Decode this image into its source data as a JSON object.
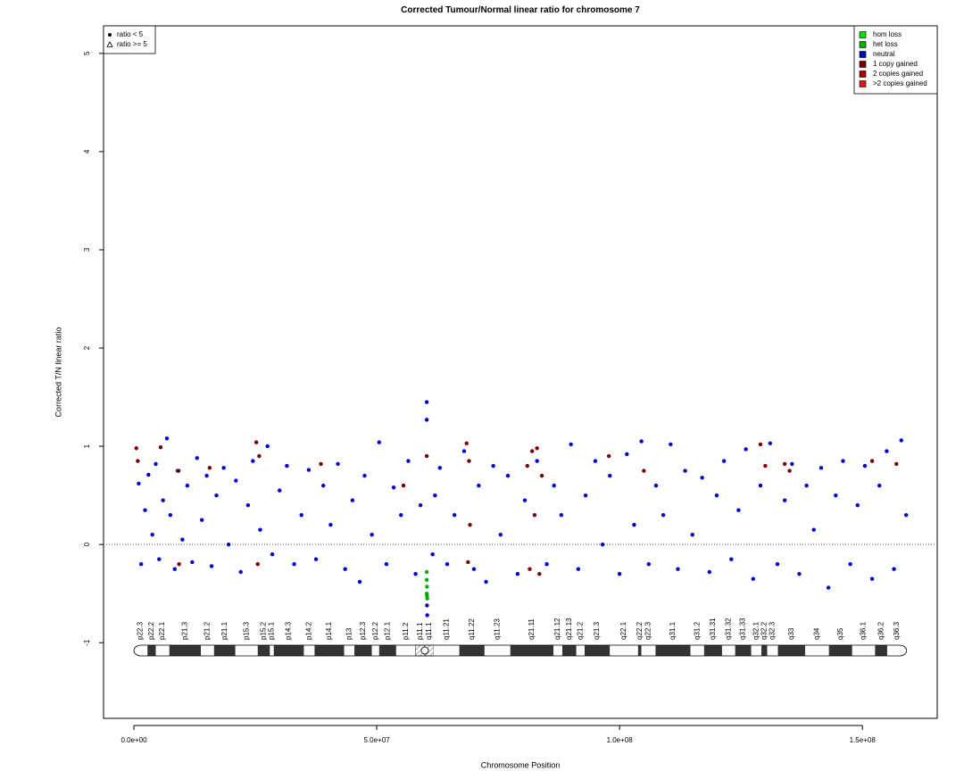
{
  "chart_data": {
    "type": "scatter",
    "title": "Corrected Tumour/Normal linear ratio for chromosome  7",
    "x_label": "Chromosome Position",
    "y_label": "Corrected T/N linear ratio",
    "xlim": [
      -6250000,
      165400000
    ],
    "ylim": [
      -1.77,
      5.28
    ],
    "xticks": [
      {
        "value": 0,
        "label": "0.0e+00"
      },
      {
        "value": 50000000,
        "label": "5.0e+07"
      },
      {
        "value": 100000000,
        "label": "1.0e+08"
      },
      {
        "value": 150000000,
        "label": "1.5e+08"
      }
    ],
    "yticks": [
      -1,
      0,
      1,
      2,
      3,
      4,
      5
    ],
    "reference_line": 0,
    "legend": "top-right",
    "shape_legend": [
      "ratio < 5",
      "ratio >= 5"
    ],
    "series": [
      {
        "name": "hom loss",
        "color": "#00e000",
        "x": [],
        "values": []
      },
      {
        "name": "het loss",
        "color": "#00b000",
        "x": [
          60300000.0,
          60350000.0,
          60300000.0,
          60350000.0,
          60400000.0,
          60300000.0
        ],
        "values": [
          -0.36,
          -0.43,
          -0.5,
          -0.52,
          -0.55,
          -0.28
        ]
      },
      {
        "name": "neutral",
        "color": "#0000c8",
        "x": [
          1000000.0,
          1500000.0,
          2300000.0,
          3000000.0,
          3800000.0,
          4500000.0,
          5200000.0,
          6000000.0,
          6800000.0,
          7500000.0,
          8400000.0,
          9200000.0,
          10000000.0,
          11000000.0,
          12000000.0,
          13000000.0,
          14000000.0,
          15000000.0,
          16000000.0,
          17000000.0,
          18500000.0,
          19500000.0,
          21000000.0,
          22000000.0,
          23500000.0,
          24500000.0,
          26000000.0,
          27500000.0,
          28500000.0,
          30000000.0,
          31500000.0,
          33000000.0,
          34500000.0,
          36000000.0,
          37500000.0,
          39000000.0,
          40500000.0,
          42000000.0,
          43500000.0,
          45000000.0,
          46500000.0,
          47500000.0,
          49000000.0,
          50500000.0,
          52000000.0,
          53500000.0,
          55000000.0,
          56500000.0,
          58000000.0,
          59000000.0,
          60300000.0,
          60300000.0,
          60400000.0,
          60350000.0,
          61500000.0,
          62000000.0,
          63000000.0,
          64500000.0,
          66000000.0,
          68000000.0,
          70000000.0,
          71000000.0,
          72500000.0,
          74000000.0,
          75500000.0,
          77000000.0,
          79000000.0,
          80500000.0,
          83000000.0,
          85000000.0,
          86500000.0,
          88000000.0,
          90000000.0,
          91500000.0,
          93000000.0,
          95000000.0,
          96500000.0,
          98000000.0,
          100000000.0,
          101500000.0,
          103000000.0,
          104500000.0,
          106000000.0,
          107500000.0,
          109000000.0,
          110500000.0,
          112000000.0,
          113500000.0,
          115000000.0,
          117000000.0,
          118500000.0,
          120000000.0,
          121500000.0,
          123000000.0,
          124500000.0,
          126000000.0,
          127500000.0,
          129000000.0,
          131000000.0,
          132500000.0,
          134000000.0,
          135500000.0,
          137000000.0,
          138500000.0,
          140000000.0,
          141500000.0,
          143000000.0,
          144500000.0,
          146000000.0,
          147500000.0,
          149000000.0,
          150500000.0,
          152000000.0,
          153500000.0,
          155000000.0,
          156500000.0,
          158000000.0,
          159000000.0
        ],
        "values": [
          0.62,
          -0.2,
          0.35,
          0.71,
          0.1,
          0.82,
          -0.15,
          0.45,
          1.08,
          0.3,
          -0.25,
          0.75,
          0.05,
          0.6,
          -0.18,
          0.88,
          0.25,
          0.7,
          -0.22,
          0.5,
          0.78,
          0,
          0.65,
          -0.28,
          0.4,
          0.85,
          0.15,
          1.0,
          -0.1,
          0.55,
          0.8,
          -0.2,
          0.3,
          0.76,
          -0.15,
          0.6,
          0.2,
          0.82,
          -0.25,
          0.45,
          -0.38,
          0.7,
          0.1,
          1.04,
          -0.2,
          0.58,
          0.3,
          0.85,
          -0.3,
          0.4,
          1.45,
          1.27,
          -0.72,
          -0.62,
          -0.1,
          0.5,
          0.78,
          -0.2,
          0.3,
          0.95,
          -0.25,
          0.6,
          -0.38,
          0.8,
          0.1,
          0.7,
          -0.3,
          0.45,
          0.85,
          -0.2,
          0.6,
          0.3,
          1.02,
          -0.25,
          0.5,
          0.85,
          0,
          0.7,
          -0.3,
          0.92,
          0.2,
          1.05,
          -0.2,
          0.6,
          0.3,
          1.02,
          -0.25,
          0.75,
          0.1,
          0.68,
          -0.28,
          0.5,
          0.85,
          -0.15,
          0.35,
          0.97,
          -0.35,
          0.6,
          1.03,
          -0.2,
          0.45,
          0.82,
          -0.3,
          0.6,
          0.15,
          0.78,
          -0.44,
          0.5,
          0.85,
          -0.2,
          0.4,
          0.8,
          -0.35,
          0.6,
          0.95,
          -0.25,
          1.06,
          0.3
        ]
      },
      {
        "name": "1 copy gained",
        "color": "#7a0000",
        "x": [
          500000.0,
          800000.0,
          5500000.0,
          9000000.0,
          9300000.0,
          15600000.0,
          25200000.0,
          25800000.0,
          25500000.0,
          38500000.0,
          55500000.0,
          60300000.0,
          68500000.0,
          68800000.0,
          69000000.0,
          69200000.0,
          81000000.0,
          81500000.0,
          82000000.0,
          82500000.0,
          83000000.0,
          83500000.0,
          84000000.0,
          97800000.0,
          105000000.0,
          129000000.0,
          130000000.0,
          134000000.0,
          135000000.0,
          152000000.0,
          157000000.0
        ],
        "values": [
          0.98,
          0.85,
          0.99,
          0.75,
          -0.2,
          0.78,
          1.04,
          0.9,
          -0.2,
          0.82,
          0.6,
          0.9,
          1.03,
          -0.18,
          0.85,
          0.2,
          0.8,
          -0.25,
          0.95,
          0.3,
          0.98,
          -0.3,
          0.7,
          0.9,
          0.75,
          1.02,
          0.8,
          0.82,
          0.75,
          0.85,
          0.82
        ]
      },
      {
        "name": "2 copies gained",
        "color": "#a00000",
        "x": [],
        "values": []
      },
      {
        "name": ">2 copies gained",
        "color": "#e01818",
        "x": [],
        "values": []
      }
    ],
    "bands": [
      {
        "name": "p22.3",
        "start": 0,
        "end": 2800000.0,
        "stain": "gneg"
      },
      {
        "name": "p22.2",
        "start": 2800000.0,
        "end": 4500000.0,
        "stain": "gpos"
      },
      {
        "name": "p22.1",
        "start": 4500000.0,
        "end": 7300000.0,
        "stain": "gneg"
      },
      {
        "name": "p21.3",
        "start": 7300000.0,
        "end": 13800000.0,
        "stain": "gpos"
      },
      {
        "name": "p21.2",
        "start": 13800000.0,
        "end": 16500000.0,
        "stain": "gneg"
      },
      {
        "name": "p21.1",
        "start": 16500000.0,
        "end": 20900000.0,
        "stain": "gpos"
      },
      {
        "name": "p15.3",
        "start": 20900000.0,
        "end": 25500000.0,
        "stain": "gneg"
      },
      {
        "name": "p15.2",
        "start": 25500000.0,
        "end": 28000000.0,
        "stain": "gpos"
      },
      {
        "name": "p15.1",
        "start": 28000000.0,
        "end": 28800000.0,
        "stain": "gneg"
      },
      {
        "name": "p14.3",
        "start": 28800000.0,
        "end": 35000000.0,
        "stain": "gpos"
      },
      {
        "name": "p14.2",
        "start": 35000000.0,
        "end": 37200000.0,
        "stain": "gneg"
      },
      {
        "name": "p14.1",
        "start": 37200000.0,
        "end": 43300000.0,
        "stain": "gpos"
      },
      {
        "name": "p13",
        "start": 43300000.0,
        "end": 45400000.0,
        "stain": "gneg"
      },
      {
        "name": "p12.3",
        "start": 45400000.0,
        "end": 49000000.0,
        "stain": "gpos"
      },
      {
        "name": "p12.2",
        "start": 49000000.0,
        "end": 50500000.0,
        "stain": "gneg"
      },
      {
        "name": "p12.1",
        "start": 50500000.0,
        "end": 54000000.0,
        "stain": "gpos"
      },
      {
        "name": "p11.2",
        "start": 54000000.0,
        "end": 58000000.0,
        "stain": "gneg"
      },
      {
        "name": "p11.1",
        "start": 58000000.0,
        "end": 59900000.0,
        "stain": "acen"
      },
      {
        "name": "q11.1",
        "start": 59900000.0,
        "end": 61700000.0,
        "stain": "acen"
      },
      {
        "name": "q11.21",
        "start": 61700000.0,
        "end": 67000000.0,
        "stain": "gneg"
      },
      {
        "name": "q11.22",
        "start": 67000000.0,
        "end": 72200000.0,
        "stain": "gpos"
      },
      {
        "name": "q11.23",
        "start": 72200000.0,
        "end": 77500000.0,
        "stain": "gneg"
      },
      {
        "name": "q21.11",
        "start": 77500000.0,
        "end": 86400000.0,
        "stain": "gpos"
      },
      {
        "name": "q21.12",
        "start": 86400000.0,
        "end": 88200000.0,
        "stain": "gneg"
      },
      {
        "name": "q21.13",
        "start": 88200000.0,
        "end": 91100000.0,
        "stain": "gpos"
      },
      {
        "name": "q21.2",
        "start": 91100000.0,
        "end": 92800000.0,
        "stain": "gneg"
      },
      {
        "name": "q21.3",
        "start": 92800000.0,
        "end": 98000000.0,
        "stain": "gpos"
      },
      {
        "name": "q22.1",
        "start": 98000000.0,
        "end": 103800000.0,
        "stain": "gneg"
      },
      {
        "name": "q22.2",
        "start": 103800000.0,
        "end": 104500000.0,
        "stain": "gpos"
      },
      {
        "name": "q22.3",
        "start": 104500000.0,
        "end": 107400000.0,
        "stain": "gneg"
      },
      {
        "name": "q31.1",
        "start": 107400000.0,
        "end": 114600000.0,
        "stain": "gpos"
      },
      {
        "name": "q31.2",
        "start": 114600000.0,
        "end": 117400000.0,
        "stain": "gneg"
      },
      {
        "name": "q31.31",
        "start": 117400000.0,
        "end": 121100000.0,
        "stain": "gpos"
      },
      {
        "name": "q31.32",
        "start": 121100000.0,
        "end": 123800000.0,
        "stain": "gneg"
      },
      {
        "name": "q31.33",
        "start": 123800000.0,
        "end": 127100000.0,
        "stain": "gpos"
      },
      {
        "name": "q32.1",
        "start": 127100000.0,
        "end": 129200000.0,
        "stain": "gneg"
      },
      {
        "name": "q32.2",
        "start": 129200000.0,
        "end": 130400000.0,
        "stain": "gpos"
      },
      {
        "name": "q32.3",
        "start": 130400000.0,
        "end": 132600000.0,
        "stain": "gneg"
      },
      {
        "name": "q33",
        "start": 132600000.0,
        "end": 138200000.0,
        "stain": "gpos"
      },
      {
        "name": "q34",
        "start": 138200000.0,
        "end": 143100000.0,
        "stain": "gneg"
      },
      {
        "name": "q35",
        "start": 143100000.0,
        "end": 147900000.0,
        "stain": "gpos"
      },
      {
        "name": "q36.1",
        "start": 147900000.0,
        "end": 152600000.0,
        "stain": "gneg"
      },
      {
        "name": "q36.2",
        "start": 152600000.0,
        "end": 155100000.0,
        "stain": "gpos"
      },
      {
        "name": "q36.3",
        "start": 155100000.0,
        "end": 159100000.0,
        "stain": "gneg"
      }
    ]
  }
}
